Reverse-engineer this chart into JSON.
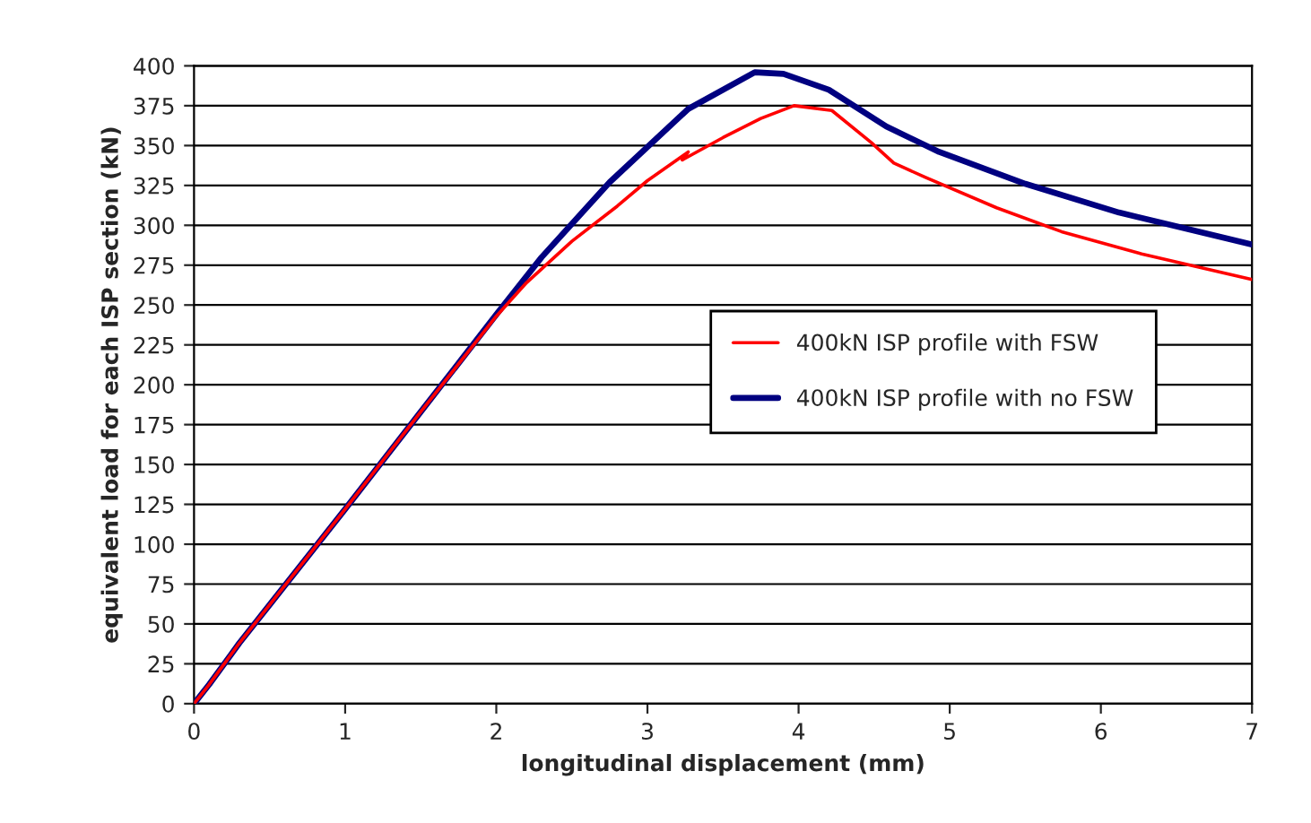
{
  "chart_data": {
    "type": "line",
    "xlabel": "longitudinal displacement (mm)",
    "ylabel": "equivalent load for each ISP section (kN)",
    "xlim": [
      0,
      7
    ],
    "xticks": [
      0,
      1,
      2,
      3,
      4,
      5,
      6,
      7
    ],
    "ylim": [
      0,
      400
    ],
    "yticks": [
      0,
      25,
      50,
      75,
      100,
      125,
      150,
      175,
      200,
      225,
      250,
      275,
      300,
      325,
      350,
      375,
      400
    ],
    "grid": "y",
    "legend": "right",
    "marker": "none",
    "line_style": "solid",
    "series": [
      {
        "name": "400kN ISP profile with FSW",
        "color": "#ff0000",
        "x": [
          0,
          0.1,
          0.3,
          0.5,
          1,
          1.5,
          2,
          2.2,
          2.5,
          2.8,
          3.0,
          3.27,
          3.23,
          3.5,
          3.75,
          3.97,
          4.22,
          4.48,
          4.63,
          4.84,
          5.31,
          5.74,
          6.27,
          7
        ],
        "values": [
          0,
          12,
          38,
          62,
          122,
          183,
          243,
          264,
          290,
          312,
          328,
          346,
          341,
          355,
          367,
          375,
          372,
          352,
          339,
          330,
          311,
          296,
          282,
          266
        ]
      },
      {
        "name": "400kN ISP profile with no FSW",
        "color": "#000080",
        "x": [
          0,
          0.1,
          0.3,
          0.5,
          1,
          1.5,
          2,
          2.3,
          2.75,
          3.27,
          3.71,
          3.9,
          4.2,
          4.58,
          4.93,
          5.5,
          6.12,
          7
        ],
        "values": [
          0,
          12,
          38,
          62,
          122,
          183,
          244,
          280,
          327,
          373,
          396,
          395,
          385,
          362,
          346,
          326,
          308,
          288
        ]
      }
    ]
  }
}
